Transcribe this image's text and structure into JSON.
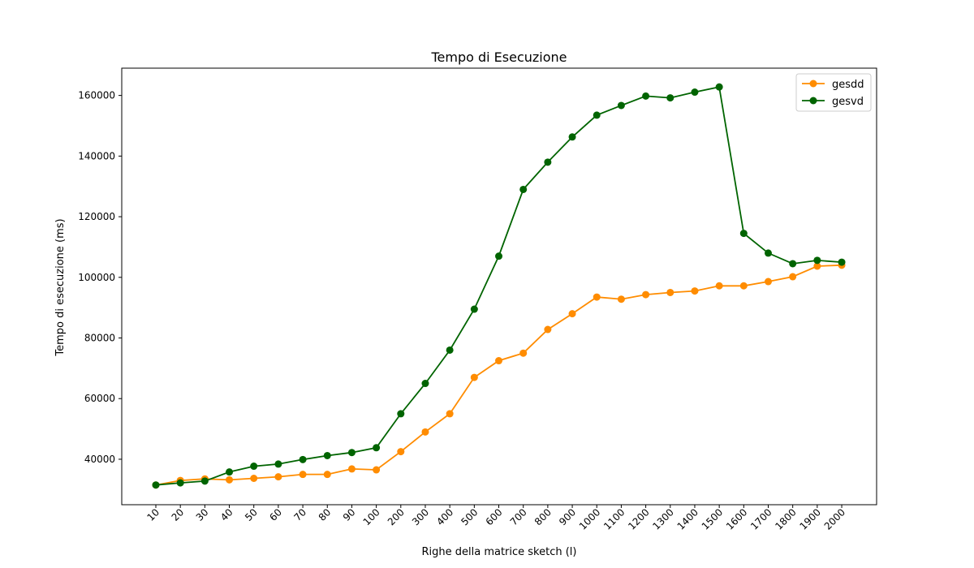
{
  "chart_data": {
    "type": "line",
    "title": "Tempo di Esecuzione",
    "xlabel": "Righe della matrice sketch (l)",
    "ylabel": "Tempo di esecuzione (ms)",
    "categories": [
      "10",
      "20",
      "30",
      "40",
      "50",
      "60",
      "70",
      "80",
      "90",
      "100",
      "200",
      "300",
      "400",
      "500",
      "600",
      "700",
      "800",
      "900",
      "1000",
      "1100",
      "1200",
      "1300",
      "1400",
      "1500",
      "1600",
      "1700",
      "1800",
      "1900",
      "2000"
    ],
    "ylim": [
      25000,
      169000
    ],
    "yticks": [
      40000,
      60000,
      80000,
      100000,
      120000,
      140000,
      160000
    ],
    "grid": false,
    "legend_position": "top-right",
    "series": [
      {
        "name": "gesdd",
        "color": "#ff8c00",
        "values": [
          31500,
          33000,
          33500,
          33200,
          33700,
          34200,
          35000,
          35000,
          36800,
          36500,
          42500,
          49000,
          55000,
          67000,
          72500,
          75000,
          82800,
          88000,
          93500,
          92800,
          94300,
          95000,
          95500,
          97200,
          97200,
          98600,
          100200,
          103700,
          104000
        ]
      },
      {
        "name": "gesvd",
        "color": "#006400",
        "values": [
          31500,
          32200,
          32800,
          35800,
          37700,
          38400,
          39900,
          41200,
          42200,
          43800,
          55000,
          65000,
          76000,
          89500,
          107000,
          129000,
          138000,
          146300,
          153500,
          156700,
          159800,
          159200,
          161100,
          162800,
          114500,
          108000,
          104500,
          105600,
          105000
        ]
      }
    ]
  }
}
